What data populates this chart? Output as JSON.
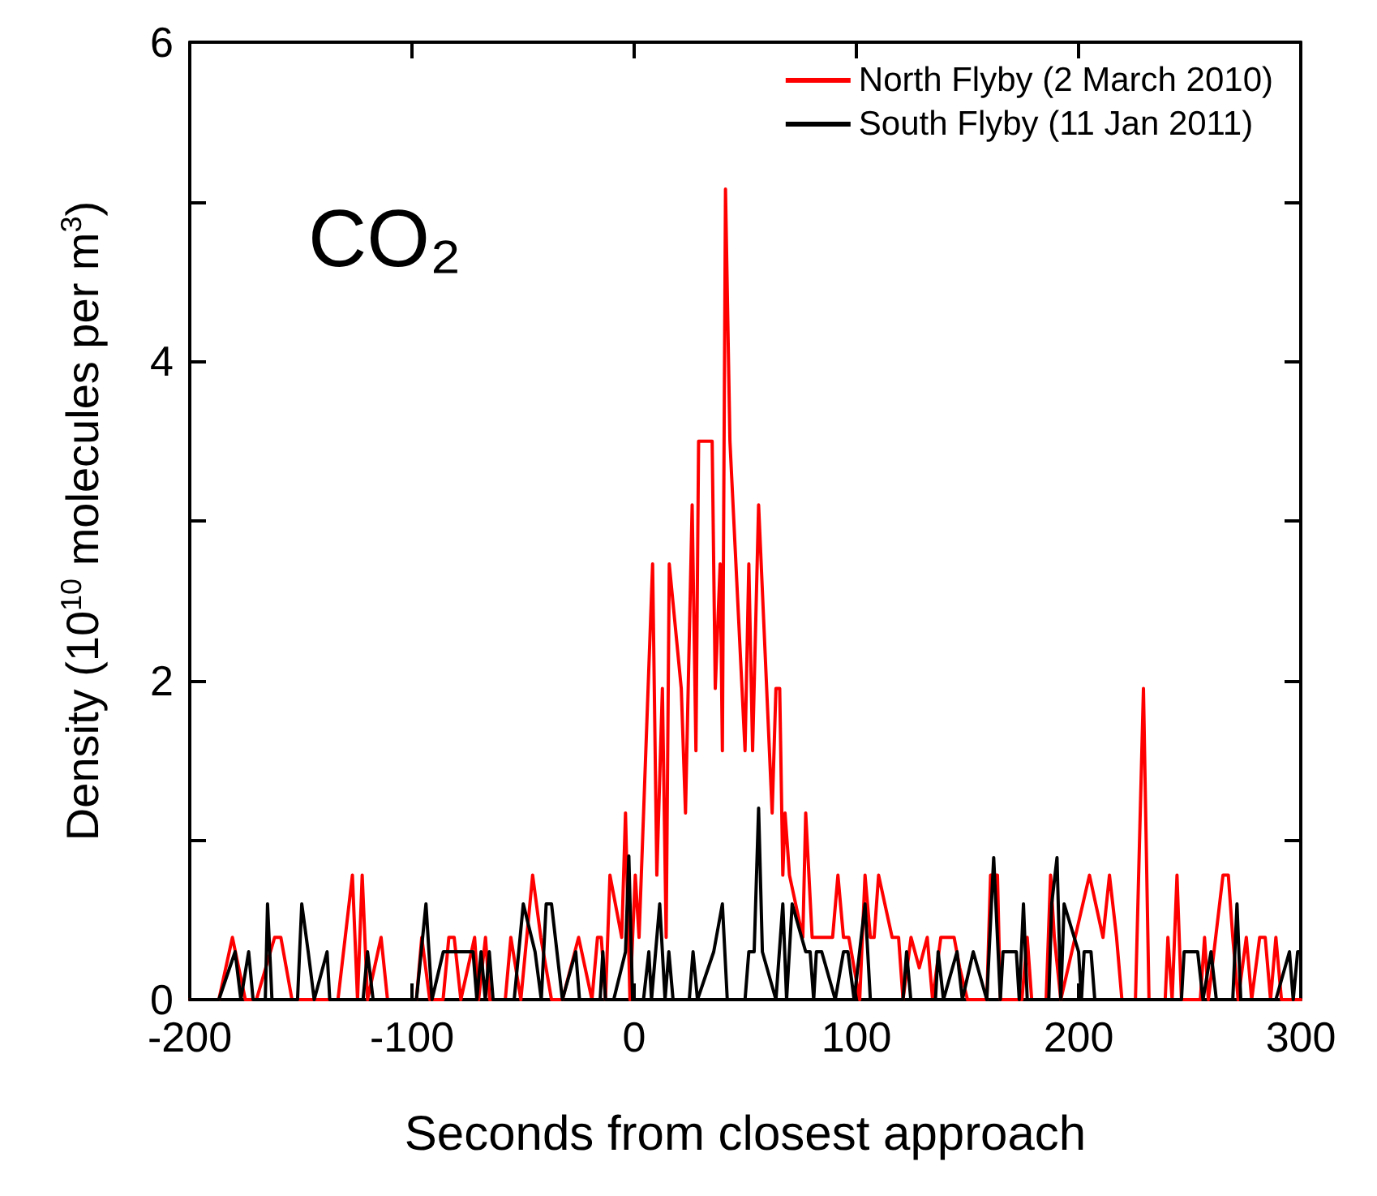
{
  "chart_data": {
    "type": "line",
    "xlabel": "Seconds from closest approach",
    "ylabel": "Density (10$^{10}$ molecules per m$^{3}$)",
    "annotations": [
      "CO₂"
    ],
    "xlim": [
      -200,
      300
    ],
    "ylim": [
      0,
      6
    ],
    "xticks": [
      -200,
      -100,
      0,
      100,
      200,
      300
    ],
    "yticks": [
      0,
      {
        "value": 1,
        "label": null
      },
      2,
      {
        "value": 3,
        "label": null
      },
      4,
      {
        "value": 5,
        "label": null
      },
      6
    ],
    "grid": false,
    "legend": "top right",
    "marker": "none",
    "line_style": "solid",
    "series": [
      {
        "name": "North Flyby (2 March 2010)",
        "color": "#ff0000",
        "x": [
          -200,
          -186.9,
          -180.8,
          -175,
          -170,
          -161.8,
          -159,
          -154,
          -133.3,
          -126.8,
          -124.5,
          -122.4,
          -120,
          -113.9,
          -111,
          -98,
          -95.6,
          -92,
          -86,
          -83.4,
          -81,
          -78,
          -71.8,
          -70,
          -66.9,
          -65,
          -58,
          -55.5,
          -51,
          -45.7,
          -42,
          -37.2,
          -32.3,
          -25,
          -19,
          -16.5,
          -14.8,
          -12.9,
          -10.9,
          -5.6,
          -3.9,
          -1.9,
          0.5,
          2.2,
          8.3,
          10.2,
          12.7,
          14.4,
          15.8,
          21.2,
          23.1,
          26.1,
          27.8,
          29,
          35.1,
          36.5,
          38.7,
          39.7,
          41.1,
          43.1,
          49.9,
          51.6,
          53.3,
          56,
          62.1,
          63.8,
          65.5,
          66.9,
          67.9,
          69.9,
          75.9,
          77.2,
          80.1,
          89.3,
          91.7,
          94.2,
          96.6,
          101.5,
          103.9,
          106.3,
          108,
          110,
          116.1,
          119,
          121,
          124.6,
          128.3,
          131.9,
          134.3,
          138,
          144,
          146.5,
          150,
          158.7,
          160.4,
          163.5,
          164.8,
          174.5,
          176.9,
          178.9,
          185.4,
          187.4,
          189.1,
          192,
          204.9,
          211,
          213.9,
          217.1,
          219.5,
          225.6,
          229.2,
          231.7,
          239,
          240.2,
          242.1,
          244.3,
          246.3,
          254.8,
          256.7,
          258.4,
          265,
          267.4,
          269.4,
          271.8,
          275.5,
          277.9,
          281.5,
          284,
          286.4,
          288.8,
          291.3,
          300
        ],
        "values": [
          0,
          0,
          0.39,
          0,
          0,
          0.39,
          0.39,
          0,
          0,
          0.78,
          0,
          0.78,
          0,
          0.39,
          0,
          0,
          0.39,
          0,
          0,
          0.39,
          0.39,
          0,
          0.39,
          0,
          0.39,
          0,
          0,
          0.39,
          0,
          0.78,
          0.39,
          0,
          0,
          0.39,
          0,
          0.39,
          0.39,
          0,
          0.78,
          0.39,
          1.17,
          0,
          0.78,
          0.39,
          2.73,
          0.78,
          1.95,
          0.39,
          2.73,
          1.95,
          1.17,
          3.1,
          1.56,
          3.5,
          3.5,
          1.95,
          2.73,
          1.56,
          5.08,
          3.5,
          1.56,
          2.73,
          1.56,
          3.1,
          1.17,
          1.95,
          1.95,
          0.78,
          1.17,
          0.78,
          0.39,
          1.17,
          0.39,
          0.39,
          0.78,
          0.39,
          0.39,
          0,
          0.78,
          0.39,
          0.39,
          0.78,
          0.39,
          0.39,
          0,
          0.39,
          0.2,
          0.39,
          0,
          0.39,
          0.39,
          0.2,
          0,
          0,
          0.78,
          0.78,
          0,
          0,
          0.39,
          0,
          0,
          0.78,
          0.39,
          0,
          0.78,
          0.39,
          0.78,
          0.39,
          0,
          0,
          1.95,
          0,
          0,
          0.39,
          0,
          0.78,
          0,
          0,
          0.39,
          0,
          0.78,
          0.78,
          0.39,
          0,
          0.39,
          0,
          0.39,
          0.39,
          0,
          0.39,
          0,
          0
        ]
      },
      {
        "name": "South Flyby (11 Jan 2011)",
        "color": "#000000",
        "x": [
          -200,
          -186.9,
          -179.6,
          -177,
          -173.5,
          -171.5,
          -166,
          -165,
          -163,
          -151.5,
          -149.6,
          -146.7,
          -144,
          -138.2,
          -137,
          -122,
          -120,
          -117.5,
          -98,
          -93.7,
          -91,
          -85.9,
          -77.4,
          -72.5,
          -70.8,
          -68.9,
          -67,
          -65.2,
          -63.5,
          -54,
          -49.9,
          -44.6,
          -41.8,
          -39.6,
          -37.2,
          -32.3,
          -26.3,
          -24.6,
          -15.3,
          -14.1,
          -12.9,
          -9.2,
          -3.9,
          -2.4,
          -0.7,
          4.2,
          6.6,
          7.8,
          11.5,
          13.9,
          15.6,
          17.5,
          24.8,
          26.5,
          28.5,
          35.8,
          39.7,
          41.9,
          49.9,
          51.6,
          54,
          56,
          57.7,
          63.8,
          66.9,
          68.6,
          71.1,
          77.2,
          79.2,
          80.8,
          82,
          84.4,
          90.5,
          94.2,
          96.2,
          99,
          103.9,
          106.3,
          121,
          122.6,
          124.5,
          135.6,
          136.8,
          139.2,
          145.3,
          147.7,
          152.6,
          158.7,
          161.8,
          164.8,
          166,
          172,
          173.3,
          175.2,
          176.9,
          186.6,
          187.9,
          190.3,
          192,
          193.5,
          200,
          201.3,
          202.5,
          205.6,
          207.3,
          246.3,
          247.5,
          253.6,
          256,
          259.6,
          262,
          269.4,
          271.3,
          273,
          288.8,
          294.9,
          296.6,
          298.6,
          300
        ],
        "values": [
          0,
          0,
          0.3,
          0,
          0.3,
          0,
          0,
          0.6,
          0,
          0,
          0.6,
          0.3,
          0,
          0.3,
          0,
          0,
          0.3,
          0,
          0,
          0.6,
          0,
          0.3,
          0.3,
          0.3,
          0,
          0.3,
          0,
          0.3,
          0,
          0,
          0.6,
          0.3,
          0,
          0.6,
          0.6,
          0,
          0.3,
          0,
          0,
          0.3,
          0,
          0,
          0.3,
          0.9,
          0,
          0,
          0.3,
          0,
          0.6,
          0,
          0.3,
          0,
          0,
          0.3,
          0,
          0.3,
          0.6,
          0,
          0,
          0.3,
          0.3,
          1.2,
          0.3,
          0,
          0.6,
          0,
          0.6,
          0.3,
          0.3,
          0,
          0.3,
          0.3,
          0,
          0.3,
          0.3,
          0,
          0.6,
          0,
          0,
          0.3,
          0,
          0,
          0.3,
          0,
          0.3,
          0,
          0.3,
          0,
          0.89,
          0,
          0.3,
          0.3,
          0,
          0.6,
          0,
          0,
          0.6,
          0.89,
          0,
          0.6,
          0.3,
          0,
          0.3,
          0.3,
          0,
          0,
          0.3,
          0.3,
          0,
          0.3,
          0,
          0,
          0.6,
          0,
          0,
          0.3,
          0,
          0.3,
          0.3
        ]
      }
    ]
  }
}
